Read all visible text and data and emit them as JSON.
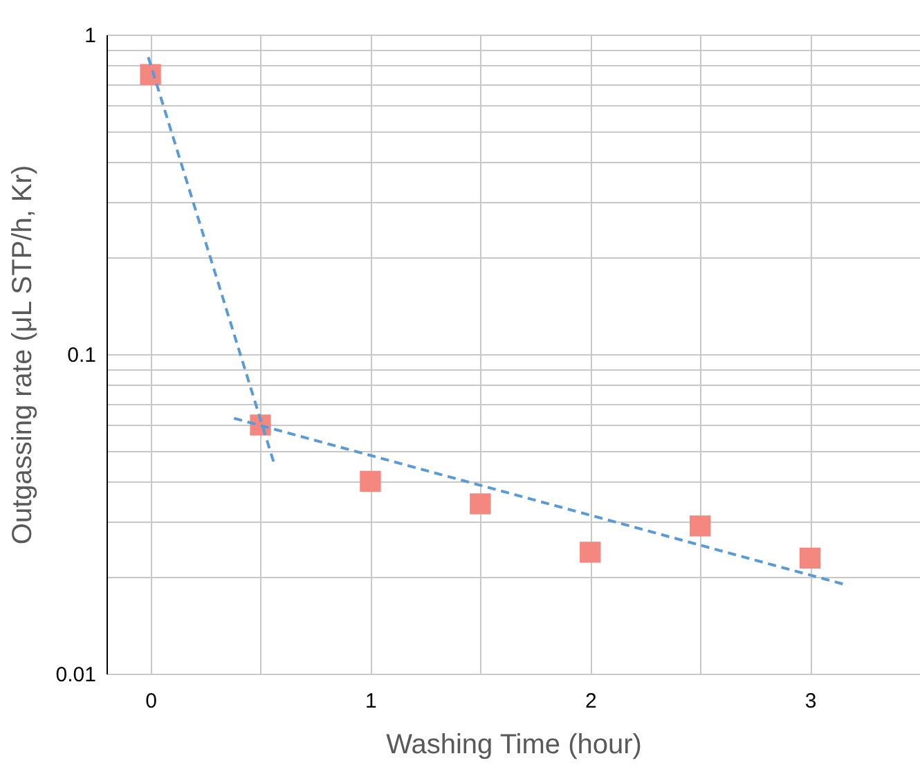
{
  "chart_data": {
    "type": "scatter",
    "xlabel": "Washing Time (hour)",
    "ylabel": "Outgassing rate (μL STP/h, Kr)",
    "log": "y",
    "grid": true,
    "xlim": [
      -0.2,
      3.5
    ],
    "xticks": [
      0,
      {
        "value": 0.5,
        "label": null
      },
      1,
      {
        "value": 1.5,
        "label": null
      },
      2,
      {
        "value": 2.5,
        "label": null
      },
      3
    ],
    "ylim": [
      0.01,
      1
    ],
    "yticks": [
      0.01,
      {
        "value": 0.02,
        "label": null
      },
      {
        "value": 0.03,
        "label": null
      },
      {
        "value": 0.04,
        "label": null
      },
      {
        "value": 0.05,
        "label": null
      },
      {
        "value": 0.06,
        "label": null
      },
      {
        "value": 0.07,
        "label": null
      },
      {
        "value": 0.08,
        "label": null
      },
      {
        "value": 0.09,
        "label": null
      },
      0.1,
      {
        "value": 0.2,
        "label": null
      },
      {
        "value": 0.3,
        "label": null
      },
      {
        "value": 0.4,
        "label": null
      },
      {
        "value": 0.5,
        "label": null
      },
      {
        "value": 0.6,
        "label": null
      },
      {
        "value": 0.7,
        "label": null
      },
      {
        "value": 0.8,
        "label": null
      },
      {
        "value": 0.9,
        "label": null
      },
      1
    ],
    "series": [
      {
        "color": "#f4877f",
        "marker": "square",
        "x": [
          0,
          0.5,
          1,
          1.5,
          2,
          2.5,
          3
        ],
        "values": [
          0.75,
          0.06,
          0.04,
          0.034,
          0.024,
          0.029,
          0.023
        ]
      },
      {
        "type": "line",
        "color": "#5b9bd5",
        "line_style": "dashed",
        "x": [
          -0.01,
          0.56
        ],
        "values": [
          0.85,
          0.046
        ]
      },
      {
        "type": "line",
        "color": "#5b9bd5",
        "line_style": "dashed",
        "x": [
          0.38,
          3.16
        ],
        "values": [
          0.063,
          0.019
        ]
      }
    ]
  }
}
